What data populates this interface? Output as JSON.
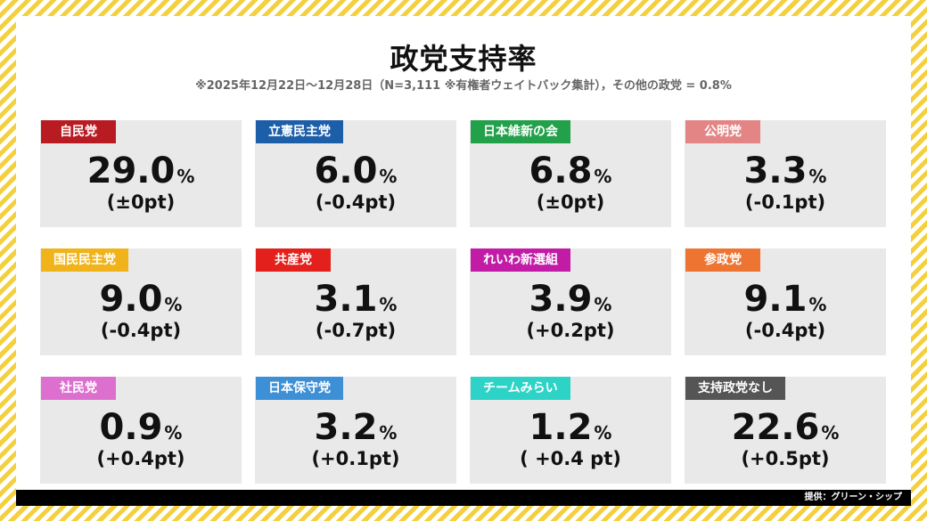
{
  "title": "政党支持率",
  "subtitle": "※2025年12月22日～12月28日（N=3,111 ※有権者ウェイトバック集計），その他の政党 = 0.8%",
  "percent_sign": "%",
  "footer": "提供：グリーン・シップ",
  "parties": [
    {
      "name": "自民党",
      "value": "29.0",
      "change": "(±0pt)",
      "color": "#b81c22"
    },
    {
      "name": "立憲民主党",
      "value": "6.0",
      "change": "(-0.4pt)",
      "color": "#1d5ea8"
    },
    {
      "name": "日本維新の会",
      "value": "6.8",
      "change": "(±0pt)",
      "color": "#23a04a"
    },
    {
      "name": "公明党",
      "value": "3.3",
      "change": "(-0.1pt)",
      "color": "#e38585"
    },
    {
      "name": "国民民主党",
      "value": "9.0",
      "change": "(-0.4pt)",
      "color": "#f0b31a"
    },
    {
      "name": "共産党",
      "value": "3.1",
      "change": "(-0.7pt)",
      "color": "#e3201b"
    },
    {
      "name": "れいわ新選組",
      "value": "3.9",
      "change": "(+0.2pt)",
      "color": "#c21ba6"
    },
    {
      "name": "参政党",
      "value": "9.1",
      "change": "(-0.4pt)",
      "color": "#ee7432"
    },
    {
      "name": "社民党",
      "value": "0.9",
      "change": "(+0.4pt)",
      "color": "#dd6fcf"
    },
    {
      "name": "日本保守党",
      "value": "3.2",
      "change": "(+0.1pt)",
      "color": "#3d8fd6"
    },
    {
      "name": "チームみらい",
      "value": "1.2",
      "change": "( +0.4 pt)",
      "color": "#2ed3c7"
    },
    {
      "name": "支持政党なし",
      "value": "22.6",
      "change": "(+0.5pt)",
      "color": "#555555"
    }
  ]
}
